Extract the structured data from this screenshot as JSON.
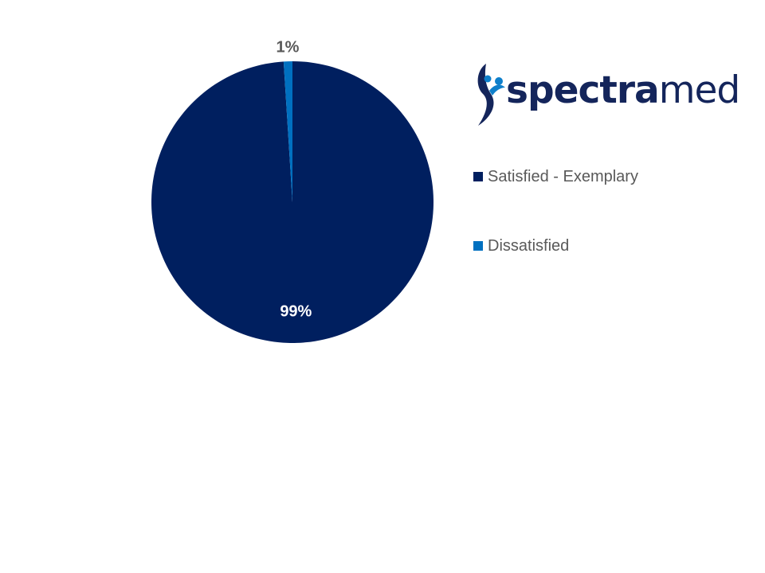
{
  "chart_data": {
    "type": "pie",
    "categories": [
      "Satisfied - Exemplary",
      "Dissatisfied"
    ],
    "values": [
      99,
      1
    ],
    "data_labels": [
      "99%",
      "1%"
    ],
    "colors": [
      "#001F5F",
      "#0070C0"
    ],
    "start_angle_deg": 0,
    "direction": "clockwise",
    "legend_position": "right"
  },
  "logo": {
    "text_strong": "spectra",
    "text_light": "med",
    "colors": {
      "strong": "#14255B",
      "light": "#14255B",
      "mark_dark": "#14255B",
      "mark_light": "#0E7FCB"
    }
  }
}
